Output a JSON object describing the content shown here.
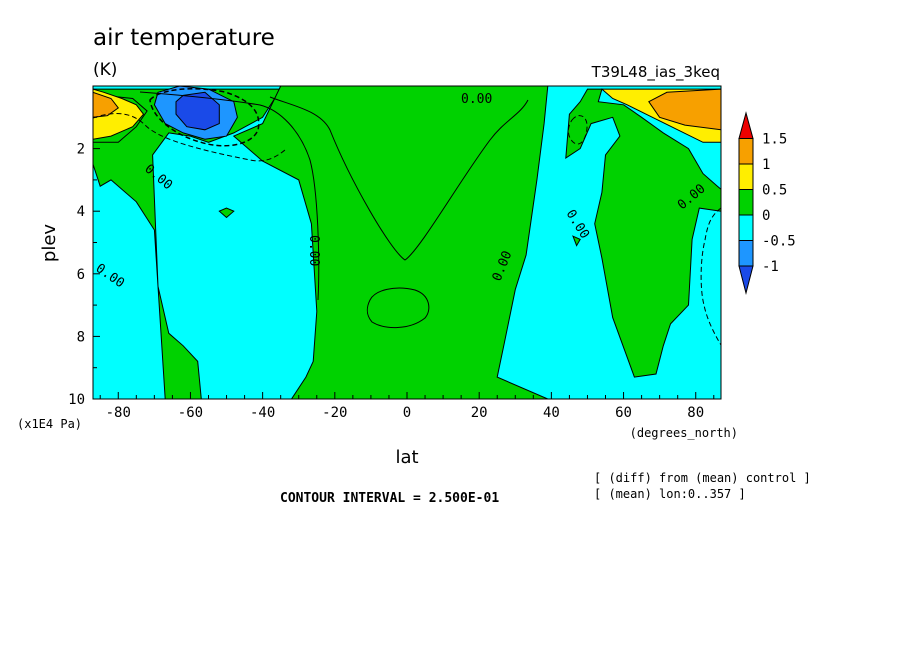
{
  "chart_data": {
    "type": "contour",
    "title": "air temperature",
    "units": "(K)",
    "experiment": "T39L48_ias_3keq",
    "xlabel": "lat",
    "x_units": "(degrees_north)",
    "ylabel": "plev",
    "y_units": "(x1E4 Pa)",
    "xlim": [
      -87,
      87
    ],
    "ylim": [
      10,
      0
    ],
    "x_ticks": [
      -80,
      -60,
      -40,
      -20,
      0,
      20,
      40,
      60,
      80
    ],
    "y_ticks": [
      2,
      4,
      6,
      8,
      10
    ],
    "contour_interval_text": "CONTOUR INTERVAL = 2.500E-01",
    "notes": [
      "[ (diff) from (mean) control ]",
      "[ (mean) lon:0..357 ]"
    ],
    "contour_labels": [
      "0.00",
      "0.00",
      "0.00",
      "0.00",
      "0.00",
      "0.00",
      "0.00"
    ],
    "colorbar": {
      "labels": [
        "1.5",
        "1",
        "0.5",
        "0",
        "-0.5",
        "-1"
      ],
      "bins": [
        {
          "range": "> 1.5",
          "color": "#ee0000"
        },
        {
          "range": "1 to 1.5",
          "color": "#f7a000"
        },
        {
          "range": "0.5 to 1",
          "color": "#ffee00"
        },
        {
          "range": "0 to 0.5",
          "color": "#00d200"
        },
        {
          "range": "-0.5 to 0",
          "color": "#00ffff"
        },
        {
          "range": "-1 to -0.5",
          "color": "#1e96ff"
        },
        {
          "range": "< -1",
          "color": "#1a4ae8"
        }
      ]
    },
    "regions": [
      {
        "color": "#00d200",
        "level": "0 to 0.5",
        "polygon": [
          [
            -87,
            2.5
          ],
          [
            -85,
            3.2
          ],
          [
            -82,
            3.0
          ],
          [
            -75,
            3.7
          ],
          [
            -70,
            4.6
          ],
          [
            -67,
            10
          ],
          [
            -57,
            10
          ],
          [
            -58,
            8.8
          ],
          [
            -62,
            8.3
          ],
          [
            -66,
            7.9
          ],
          [
            -69,
            6.4
          ],
          [
            -70.5,
            2.2
          ],
          [
            -66,
            1.5
          ],
          [
            -60,
            1.6
          ],
          [
            -55,
            1.8
          ],
          [
            -48,
            1.5
          ],
          [
            -40,
            1.0
          ],
          [
            -35,
            0.1
          ],
          [
            -87,
            0.1
          ]
        ]
      },
      {
        "color": "#00d200",
        "level": "0 to 0.5",
        "polygon": [
          [
            -87,
            0.2
          ],
          [
            -84,
            0.3
          ],
          [
            -76,
            0.4
          ],
          [
            -72,
            0.8
          ],
          [
            -75,
            1.3
          ],
          [
            -80,
            1.8
          ],
          [
            -87,
            1.8
          ]
        ]
      },
      {
        "color": "#00d200",
        "level": "0 to 0.5",
        "polygon": [
          [
            -48,
            1.6
          ],
          [
            -40,
            1.2
          ],
          [
            -35,
            0
          ],
          [
            39,
            0
          ],
          [
            38,
            1.2
          ],
          [
            36,
            3.0
          ],
          [
            33,
            5.4
          ],
          [
            30,
            6.5
          ],
          [
            27,
            8.2
          ],
          [
            25,
            9.3
          ],
          [
            39,
            10
          ],
          [
            -32,
            10
          ],
          [
            -28,
            9.3
          ],
          [
            -26,
            8.8
          ],
          [
            -25,
            7.2
          ],
          [
            -26.5,
            4.4
          ],
          [
            -30,
            3.0
          ],
          [
            -40,
            2.4
          ]
        ]
      },
      {
        "color": "#00d200",
        "level": "0 to 0.5",
        "polygon": [
          [
            50,
            0.1
          ],
          [
            54,
            0.1
          ],
          [
            53,
            0.5
          ],
          [
            60,
            0.6
          ],
          [
            65,
            1.0
          ],
          [
            71,
            1.5
          ],
          [
            78,
            2.0
          ],
          [
            82,
            2.8
          ],
          [
            86,
            3.2
          ],
          [
            87,
            3.3
          ],
          [
            87,
            4.0
          ],
          [
            81,
            3.9
          ],
          [
            79,
            4.9
          ],
          [
            78,
            7.0
          ],
          [
            73,
            7.6
          ],
          [
            71,
            8.3
          ],
          [
            69,
            9.2
          ],
          [
            63,
            9.3
          ],
          [
            57,
            7.4
          ],
          [
            54,
            5.5
          ],
          [
            52,
            4.4
          ],
          [
            54,
            3.4
          ],
          [
            55,
            2.2
          ],
          [
            59,
            1.6
          ],
          [
            57,
            1.0
          ],
          [
            51,
            1.2
          ],
          [
            48,
            2.0
          ],
          [
            44,
            2.3
          ],
          [
            45,
            0.9
          ],
          [
            48,
            0.5
          ]
        ]
      },
      {
        "color": "#00d200",
        "level": "0 to 0.5",
        "polygon": [
          [
            46,
            4.8
          ],
          [
            48,
            4.9
          ],
          [
            47,
            5.1
          ]
        ]
      },
      {
        "color": "#ffee00",
        "level": "0.5 to 1",
        "polygon": [
          [
            -87,
            0.1
          ],
          [
            -84,
            0.2
          ],
          [
            -79,
            0.4
          ],
          [
            -75,
            0.6
          ],
          [
            -73,
            0.9
          ],
          [
            -76,
            1.3
          ],
          [
            -82,
            1.6
          ],
          [
            -87,
            1.7
          ]
        ]
      },
      {
        "color": "#f7a000",
        "level": "1 to 1.5",
        "polygon": [
          [
            -87,
            0.2
          ],
          [
            -82,
            0.4
          ],
          [
            -80,
            0.7
          ],
          [
            -83,
            0.95
          ],
          [
            -87,
            1.0
          ]
        ]
      },
      {
        "color": "#ffee00",
        "level": "0.5 to 1",
        "polygon": [
          [
            54,
            0.1
          ],
          [
            87,
            0.1
          ],
          [
            87,
            1.8
          ],
          [
            82,
            1.8
          ],
          [
            75,
            1.4
          ],
          [
            68,
            1.0
          ],
          [
            61,
            0.6
          ],
          [
            57,
            0.4
          ]
        ]
      },
      {
        "color": "#f7a000",
        "level": "1 to 1.5",
        "polygon": [
          [
            67,
            0.5
          ],
          [
            72,
            0.2
          ],
          [
            87,
            0.1
          ],
          [
            87,
            1.4
          ],
          [
            77,
            1.25
          ],
          [
            70,
            1.0
          ]
        ]
      },
      {
        "color": "#1e96ff",
        "level": "-1 to -0.5",
        "polygon": [
          [
            -69,
            0.2
          ],
          [
            -63,
            0.0
          ],
          [
            -55,
            0.1
          ],
          [
            -48,
            0.5
          ],
          [
            -47,
            1.0
          ],
          [
            -50,
            1.6
          ],
          [
            -56,
            1.7
          ],
          [
            -62,
            1.5
          ],
          [
            -67,
            1.2
          ],
          [
            -70,
            0.6
          ]
        ]
      },
      {
        "color": "#1a4ae8",
        "level": "< -1",
        "polygon": [
          [
            -62,
            0.3
          ],
          [
            -56,
            0.2
          ],
          [
            -52,
            0.6
          ],
          [
            -52,
            1.2
          ],
          [
            -56,
            1.4
          ],
          [
            -61,
            1.3
          ],
          [
            -64,
            0.9
          ],
          [
            -64,
            0.5
          ]
        ]
      },
      {
        "color": "#00d200",
        "level": "0 to 0.5",
        "polygon": [
          [
            -50,
            3.9
          ],
          [
            -48,
            4.0
          ],
          [
            -50,
            4.2
          ],
          [
            -52,
            4.0
          ]
        ]
      }
    ]
  }
}
